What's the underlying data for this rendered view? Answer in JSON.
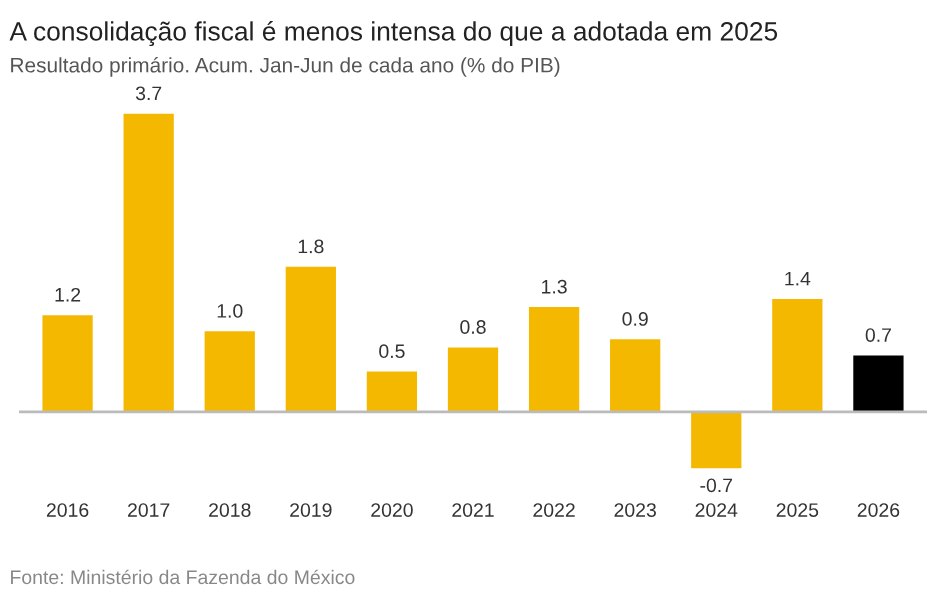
{
  "chart_data": {
    "type": "bar",
    "title": "A consolidação fiscal é menos intensa do que a adotada em 2025",
    "subtitle": "Resultado primário. Acum. Jan-Jun de cada ano (% do PIB)",
    "categories": [
      "2016",
      "2017",
      "2018",
      "2019",
      "2020",
      "2021",
      "2022",
      "2023",
      "2024",
      "2025",
      "2026"
    ],
    "values": [
      1.2,
      3.7,
      1.0,
      1.8,
      0.5,
      0.8,
      1.3,
      0.9,
      -0.7,
      1.4,
      0.7
    ],
    "colors": [
      "#f5b800",
      "#f5b800",
      "#f5b800",
      "#f5b800",
      "#f5b800",
      "#f5b800",
      "#f5b800",
      "#f5b800",
      "#f5b800",
      "#f5b800",
      "#000000"
    ],
    "value_labels": [
      "1.2",
      "3.7",
      "1.0",
      "1.8",
      "0.5",
      "0.8",
      "1.3",
      "0.9",
      "-0.7",
      "1.4",
      "0.7"
    ],
    "annotations": [
      "Fonte: Ministério da Fazenda do México"
    ],
    "grid": false,
    "legend": false
  }
}
